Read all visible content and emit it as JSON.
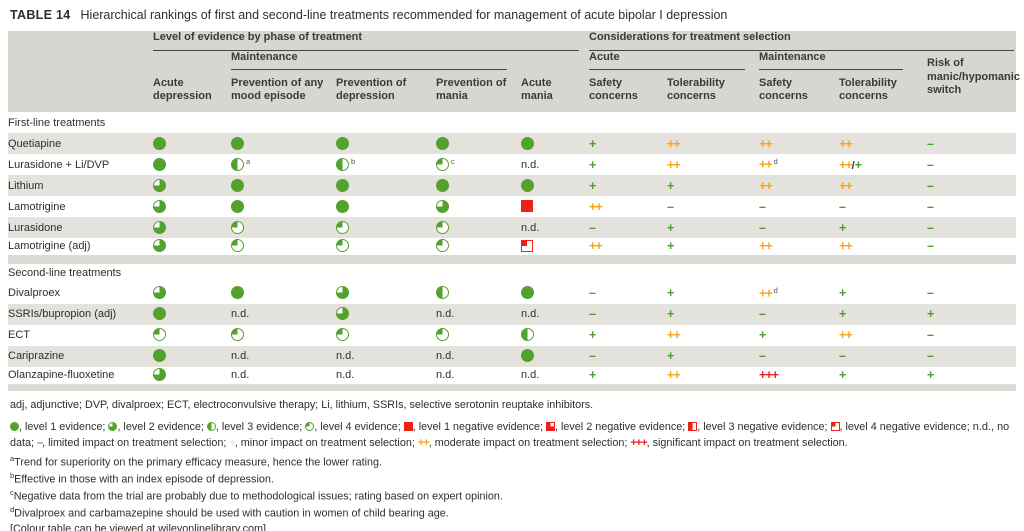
{
  "title": {
    "label": "TABLE 14",
    "text": "Hierarchical rankings of first and second-line treatments recommended for management of acute bipolar I depression"
  },
  "header": {
    "group_evidence": "Level of evidence by phase of treatment",
    "group_considerations": "Considerations for treatment selection",
    "sub_maintenance": "Maintenance",
    "sub_acute": "Acute",
    "sub_maintenance2": "Maintenance",
    "columns": [
      "Acute depression",
      "Prevention of any mood episode",
      "Prevention of depression",
      "Prevention of mania",
      "Acute mania",
      "Safety concerns",
      "Tolerability concerns",
      "Safety concerns",
      "Tolerability concerns",
      "Risk of manic/hypomanic switch"
    ]
  },
  "glyph_labels": {
    "no_data": "n.d."
  },
  "sections": [
    {
      "label": "First-line treatments",
      "rows": [
        {
          "name": "Quetiapine",
          "evidence": [
            {
              "glyph": "L1"
            },
            {
              "glyph": "L1"
            },
            {
              "glyph": "L1"
            },
            {
              "glyph": "L1"
            },
            {
              "glyph": "L1"
            }
          ],
          "considerations": [
            {
              "v": "+"
            },
            {
              "v": "++"
            },
            {
              "v": "++"
            },
            {
              "v": "++"
            },
            {
              "v": "–"
            }
          ]
        },
        {
          "name": "Lurasidone + Li/DVP",
          "evidence": [
            {
              "glyph": "L1"
            },
            {
              "glyph": "L3",
              "sup": "a"
            },
            {
              "glyph": "L3",
              "sup": "b"
            },
            {
              "glyph": "L4",
              "sup": "c"
            },
            {
              "glyph": "nd"
            }
          ],
          "considerations": [
            {
              "v": "+"
            },
            {
              "v": "++"
            },
            {
              "v": "++",
              "sup": "d"
            },
            {
              "v": "++/+"
            },
            {
              "v": "–"
            }
          ]
        },
        {
          "name": "Lithium",
          "evidence": [
            {
              "glyph": "L2"
            },
            {
              "glyph": "L1"
            },
            {
              "glyph": "L1"
            },
            {
              "glyph": "L1"
            },
            {
              "glyph": "L1"
            }
          ],
          "considerations": [
            {
              "v": "+"
            },
            {
              "v": "+"
            },
            {
              "v": "++"
            },
            {
              "v": "++"
            },
            {
              "v": "–"
            }
          ]
        },
        {
          "name": "Lamotrigine",
          "evidence": [
            {
              "glyph": "L2"
            },
            {
              "glyph": "L1"
            },
            {
              "glyph": "L1"
            },
            {
              "glyph": "L2"
            },
            {
              "glyph": "N1"
            }
          ],
          "considerations": [
            {
              "v": "++"
            },
            {
              "v": "–"
            },
            {
              "v": "–"
            },
            {
              "v": "–"
            },
            {
              "v": "–"
            }
          ]
        },
        {
          "name": "Lurasidone",
          "evidence": [
            {
              "glyph": "L2"
            },
            {
              "glyph": "L4"
            },
            {
              "glyph": "L4"
            },
            {
              "glyph": "L4"
            },
            {
              "glyph": "nd"
            }
          ],
          "considerations": [
            {
              "v": "–"
            },
            {
              "v": "+"
            },
            {
              "v": "–"
            },
            {
              "v": "+"
            },
            {
              "v": "–"
            }
          ]
        },
        {
          "name": "Lamotrigine (adj)",
          "evidence": [
            {
              "glyph": "L2"
            },
            {
              "glyph": "L4"
            },
            {
              "glyph": "L4"
            },
            {
              "glyph": "L4"
            },
            {
              "glyph": "N4"
            }
          ],
          "considerations": [
            {
              "v": "++"
            },
            {
              "v": "+"
            },
            {
              "v": "++"
            },
            {
              "v": "++"
            },
            {
              "v": "–"
            }
          ]
        }
      ]
    },
    {
      "label": "Second-line treatments",
      "rows": [
        {
          "name": "Divalproex",
          "evidence": [
            {
              "glyph": "L2"
            },
            {
              "glyph": "L1"
            },
            {
              "glyph": "L2"
            },
            {
              "glyph": "L3"
            },
            {
              "glyph": "L1"
            }
          ],
          "considerations": [
            {
              "v": "–"
            },
            {
              "v": "+"
            },
            {
              "v": "++",
              "sup": "d"
            },
            {
              "v": "+"
            },
            {
              "v": "–"
            }
          ]
        },
        {
          "name": "SSRIs/bupropion (adj)",
          "evidence": [
            {
              "glyph": "L1"
            },
            {
              "glyph": "nd"
            },
            {
              "glyph": "L2"
            },
            {
              "glyph": "nd"
            },
            {
              "glyph": "nd"
            }
          ],
          "considerations": [
            {
              "v": "–"
            },
            {
              "v": "+"
            },
            {
              "v": "–"
            },
            {
              "v": "+"
            },
            {
              "v": "+"
            }
          ]
        },
        {
          "name": "ECT",
          "evidence": [
            {
              "glyph": "L4"
            },
            {
              "glyph": "L4"
            },
            {
              "glyph": "L4"
            },
            {
              "glyph": "L4"
            },
            {
              "glyph": "L3"
            }
          ],
          "considerations": [
            {
              "v": "+"
            },
            {
              "v": "++"
            },
            {
              "v": "+"
            },
            {
              "v": "++"
            },
            {
              "v": "–"
            }
          ]
        },
        {
          "name": "Cariprazine",
          "evidence": [
            {
              "glyph": "L1"
            },
            {
              "glyph": "nd"
            },
            {
              "glyph": "nd"
            },
            {
              "glyph": "nd"
            },
            {
              "glyph": "L1"
            }
          ],
          "considerations": [
            {
              "v": "–"
            },
            {
              "v": "+"
            },
            {
              "v": "–"
            },
            {
              "v": "–"
            },
            {
              "v": "–"
            }
          ]
        },
        {
          "name": "Olanzapine-fluoxetine",
          "evidence": [
            {
              "glyph": "L2"
            },
            {
              "glyph": "nd"
            },
            {
              "glyph": "nd"
            },
            {
              "glyph": "nd"
            },
            {
              "glyph": "nd"
            }
          ],
          "considerations": [
            {
              "v": "+"
            },
            {
              "v": "++"
            },
            {
              "v": "+++"
            },
            {
              "v": "+"
            },
            {
              "v": "+"
            }
          ]
        }
      ]
    }
  ],
  "abbreviations": "adj, adjunctive; DVP, divalproex; ECT, electroconvulsive therapy; Li, lithium, SSRIs, selective serotonin reuptake inhibitors.",
  "legend_items": [
    {
      "glyph": "L1",
      "text": "level 1 evidence"
    },
    {
      "glyph": "L2",
      "text": "level 2 evidence"
    },
    {
      "glyph": "L3",
      "text": "level 3 evidence"
    },
    {
      "glyph": "L4",
      "text": "level 4 evidence"
    },
    {
      "glyph": "N1",
      "text": "level 1 negative evidence"
    },
    {
      "glyph": "N2",
      "text": "level 2 negative evidence"
    },
    {
      "glyph": "N3",
      "text": "level 3 negative evidence"
    },
    {
      "glyph": "N4",
      "text": "level 4 negative evidence"
    },
    {
      "plain": "n.d.",
      "text": "no data"
    },
    {
      "sym": "–",
      "text": "limited impact on treatment selection"
    },
    {
      "sym": "+",
      "muted": true,
      "text": "minor impact on treatment selection"
    },
    {
      "sym": "++",
      "text": "moderate impact on treatment selection"
    },
    {
      "sym": "+++",
      "text": "significant impact on treatment selection"
    }
  ],
  "footnotes": [
    {
      "marker": "a",
      "text": "Trend for superiority on the primary efficacy measure, hence the lower rating."
    },
    {
      "marker": "b",
      "text": "Effective in those with an index episode of depression."
    },
    {
      "marker": "c",
      "text": "Negative data from the trial are probably due to methodological issues; rating based on expert opinion."
    },
    {
      "marker": "d",
      "text": "Divalproex and carbamazepine should be used with caution in women of child bearing age."
    }
  ],
  "colour_note": "[Colour table can be viewed at wileyonlinelibrary.com]",
  "colors": {
    "evidence_green": "#55a130",
    "negative_red": "#ee2119",
    "plus_green": "#4f9d2f",
    "plus_orange": "#f5a21d",
    "plus_red": "#ee2119",
    "stripe_gray": "#e3e2dd",
    "header_gray": "#d7d6d0"
  }
}
